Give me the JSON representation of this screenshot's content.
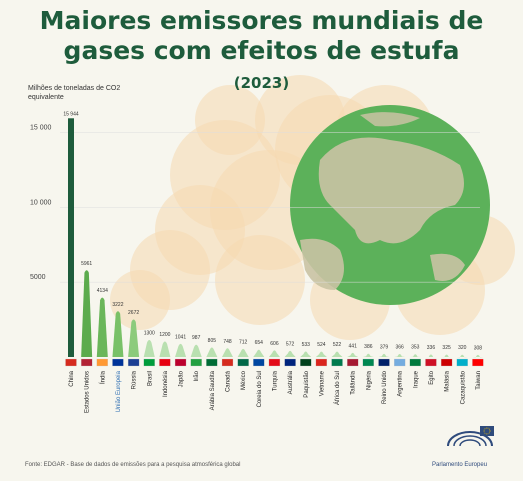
{
  "header": {
    "title_line1": "Maiores emissores mundiais de",
    "title_line2": "gases com efeitos de estufa",
    "subtitle": "(2023)"
  },
  "chart_data": {
    "type": "bar",
    "ylabel": "Milhões de toneladas de CO2 equivalente",
    "ylim": [
      0,
      17500
    ],
    "yticks": [
      5000,
      10000,
      15000
    ],
    "ytick_labels": [
      "5000",
      "10 000",
      "15 000"
    ],
    "categories": [
      "China",
      "Estados Unidos",
      "Índia",
      "União Europeia",
      "Rússia",
      "Brasil",
      "Indonésia",
      "Japão",
      "Irão",
      "Arábia Saudita",
      "Canadá",
      "México",
      "Coreia do Sul",
      "Turquia",
      "Austrália",
      "Paquistão",
      "Vietname",
      "África do Sul",
      "Tailândia",
      "Nigéria",
      "Reino Unido",
      "Argentina",
      "Iraque",
      "Egito",
      "Malásia",
      "Cazaquistão",
      "Taiwan"
    ],
    "values": [
      15944,
      5961,
      4134,
      3222,
      2672,
      1300,
      1200,
      1041,
      987,
      805,
      748,
      712,
      654,
      606,
      572,
      533,
      524,
      522,
      441,
      386,
      379,
      366,
      353,
      336,
      325,
      320,
      308
    ],
    "value_labels": [
      "15 944",
      "5961",
      "4134",
      "3222",
      "2672",
      "1300",
      "1200",
      "1041",
      "987",
      "805",
      "748",
      "712",
      "654",
      "606",
      "572",
      "533",
      "524",
      "522",
      "441",
      "386",
      "379",
      "366",
      "353",
      "336",
      "325",
      "320",
      "308"
    ],
    "colors": {
      "top1": "#1e5c3c",
      "top2": "#5cab4d",
      "top3": "#6ab65a",
      "top4": "#79c168",
      "top5": "#8ccb7c",
      "rest": "#b9e0b0",
      "smoke": "#f6d8b0",
      "globe_ocean": "#5cb15a",
      "globe_land": "#c9c3a3"
    },
    "grid": true
  },
  "footer": {
    "source": "Fonte: EDGAR - Base de dados de emissões para a pesquisa atmosférica global",
    "logo_label": "Parlamento Europeu"
  }
}
